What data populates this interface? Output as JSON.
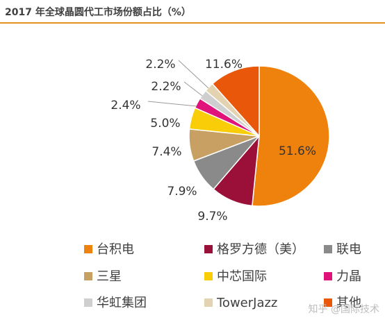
{
  "chart_data": {
    "type": "pie",
    "title": "2017 年全球晶圆代工市场份额占比（%）",
    "unit": "%",
    "legend_position": "bottom",
    "categories": [
      "台积电",
      "格罗方德（美）",
      "联电",
      "三星",
      "中芯国际",
      "力晶",
      "华虹集团",
      "TowerJazz",
      "其他"
    ],
    "values": [
      51.6,
      9.7,
      7.9,
      7.4,
      5.0,
      2.4,
      2.2,
      2.2,
      11.6
    ],
    "value_labels": [
      "51.6%",
      "9.7%",
      "7.9%",
      "7.4%",
      "5.0%",
      "2.4%",
      "2.2%",
      "2.2%",
      "11.6%"
    ],
    "colors": [
      "#EE820C",
      "#9B1038",
      "#8A8A8A",
      "#C9A063",
      "#F9CD07",
      "#E0137A",
      "#CFCFCF",
      "#E3D3B1",
      "#E8570A"
    ],
    "legend_items": [
      "台积电",
      "格罗方德（美）",
      "联电",
      "三星",
      "中芯国际",
      "力晶",
      "华虹集团",
      "TowerJazz",
      "其他"
    ]
  },
  "watermark": "知乎 @国际技术"
}
